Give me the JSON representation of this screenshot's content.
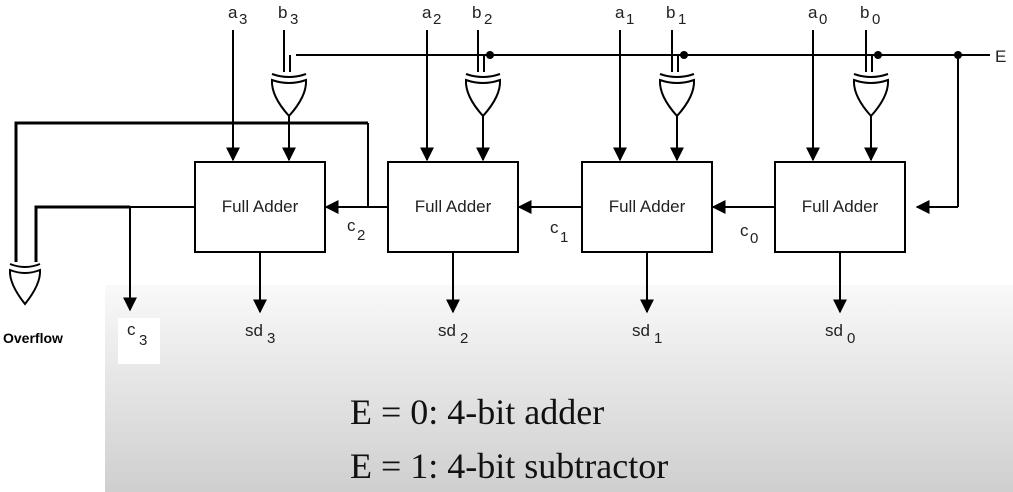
{
  "diagram": {
    "inputs": [
      {
        "a": "a",
        "a_sub": "3",
        "b": "b",
        "b_sub": "3"
      },
      {
        "a": "a",
        "a_sub": "2",
        "b": "b",
        "b_sub": "2"
      },
      {
        "a": "a",
        "a_sub": "1",
        "b": "b",
        "b_sub": "1"
      },
      {
        "a": "a",
        "a_sub": "0",
        "b": "b",
        "b_sub": "0"
      }
    ],
    "control_label": "E",
    "full_adders": [
      {
        "label": "Full Adder"
      },
      {
        "label": "Full Adder"
      },
      {
        "label": "Full Adder"
      },
      {
        "label": "Full Adder"
      }
    ],
    "carries": [
      {
        "c": "c",
        "sub": "0"
      },
      {
        "c": "c",
        "sub": "1"
      },
      {
        "c": "c",
        "sub": "2"
      },
      {
        "c": "c",
        "sub": "3"
      }
    ],
    "outputs": [
      {
        "sd": "sd",
        "sub": "3"
      },
      {
        "sd": "sd",
        "sub": "2"
      },
      {
        "sd": "sd",
        "sub": "1"
      },
      {
        "sd": "sd",
        "sub": "0"
      }
    ],
    "overflow_label": "Overflow",
    "caption": {
      "line1": "E = 0:  4-bit adder",
      "line2": "E = 1:  4-bit subtractor"
    }
  }
}
